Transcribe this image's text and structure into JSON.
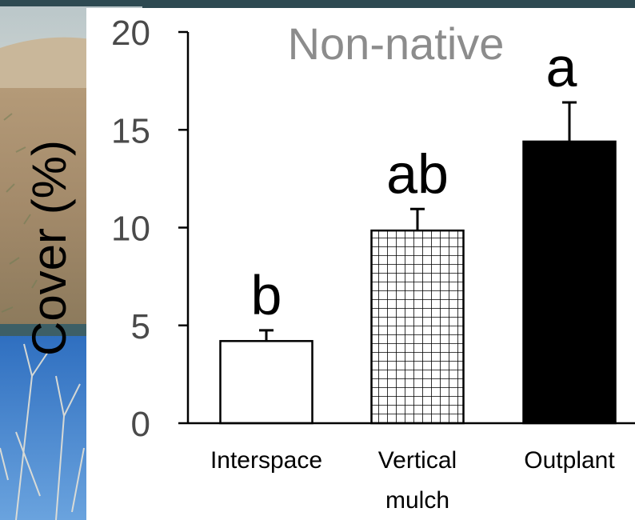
{
  "chart_data": {
    "type": "bar",
    "title": "Non-native",
    "ylabel": "Cover (%)",
    "xlabel": "",
    "ylim": [
      0,
      20
    ],
    "yticks": [
      0,
      5,
      10,
      15,
      20
    ],
    "categories": [
      {
        "lines": [
          "Interspace"
        ]
      },
      {
        "lines": [
          "Vertical",
          "mulch"
        ]
      },
      {
        "lines": [
          "Outplant"
        ]
      }
    ],
    "values": [
      4.2,
      9.85,
      14.4
    ],
    "errors": [
      0.55,
      1.1,
      2.0
    ],
    "letters": [
      "b",
      "ab",
      "a"
    ],
    "fills": [
      "white",
      "grid",
      "black"
    ],
    "grid": false,
    "legend": "none"
  },
  "colors": {
    "axis": "#000000",
    "tick_label": "#4a4a4a",
    "title": "#8c8c8c",
    "top_band": "#2e4a52"
  },
  "background_icon": "landscape-photo-strip"
}
